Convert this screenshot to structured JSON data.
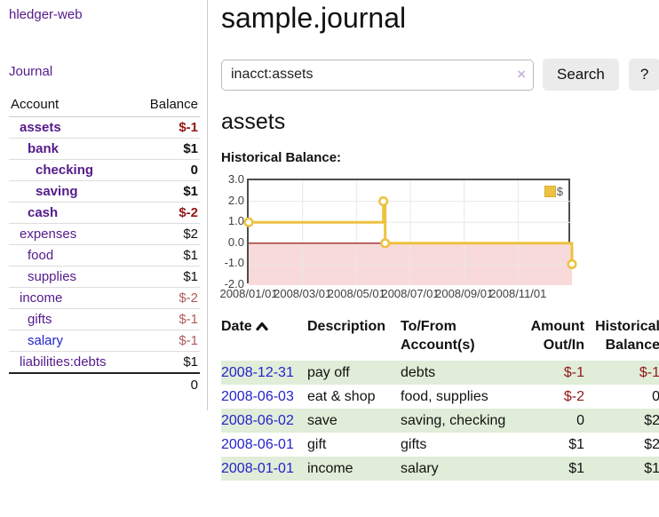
{
  "app": {
    "title": "hledger-web"
  },
  "sidebar": {
    "nav_journal": "Journal",
    "accounts_table": {
      "header_account": "Account",
      "header_balance": "Balance",
      "rows": [
        {
          "name": "assets",
          "indent": 1,
          "bold": true,
          "link_style": "visited",
          "balance": "$-1",
          "balance_style": "neg"
        },
        {
          "name": "bank",
          "indent": 2,
          "bold": true,
          "link_style": "visited",
          "balance": "$1",
          "balance_style": "pos"
        },
        {
          "name": "checking",
          "indent": 3,
          "bold": true,
          "link_style": "visited",
          "balance": "0",
          "balance_style": "pos"
        },
        {
          "name": "saving",
          "indent": 3,
          "bold": true,
          "link_style": "visited",
          "balance": "$1",
          "balance_style": "pos"
        },
        {
          "name": "cash",
          "indent": 2,
          "bold": true,
          "link_style": "visited",
          "balance": "$-2",
          "balance_style": "neg"
        },
        {
          "name": "expenses",
          "indent": 1,
          "bold": false,
          "link_style": "visited",
          "balance": "$2",
          "balance_style": "pos"
        },
        {
          "name": "food",
          "indent": 2,
          "bold": false,
          "link_style": "visited",
          "balance": "$1",
          "balance_style": "pos"
        },
        {
          "name": "supplies",
          "indent": 2,
          "bold": false,
          "link_style": "visited",
          "balance": "$1",
          "balance_style": "pos"
        },
        {
          "name": "income",
          "indent": 1,
          "bold": false,
          "link_style": "visited",
          "balance": "$-2",
          "balance_style": "neg-soft"
        },
        {
          "name": "gifts",
          "indent": 2,
          "bold": false,
          "link_style": "visited",
          "balance": "$-1",
          "balance_style": "neg-soft"
        },
        {
          "name": "salary",
          "indent": 2,
          "bold": false,
          "link_style": "unvisited",
          "balance": "$-1",
          "balance_style": "neg-soft"
        },
        {
          "name": "liabilities:debts",
          "indent": 1,
          "bold": false,
          "link_style": "visited",
          "balance": "$1",
          "balance_style": "pos"
        }
      ],
      "total": "0"
    }
  },
  "header": {
    "title": "sample.journal"
  },
  "search": {
    "value": "inacct:assets",
    "clear_icon": "×",
    "button_label": "Search",
    "help_label": "?"
  },
  "account_page": {
    "title": "assets",
    "chart_label": "Historical Balance:"
  },
  "chart_data": {
    "type": "line",
    "title": "Historical Balance of assets",
    "step": true,
    "legend": "$",
    "legend_position": "top-right",
    "series": [
      {
        "name": "$",
        "color": "#edc240",
        "points": [
          {
            "date": "2008-01-01",
            "value": 1
          },
          {
            "date": "2008-06-01",
            "value": 2
          },
          {
            "date": "2008-06-03",
            "value": 0
          },
          {
            "date": "2008-12-31",
            "value": -1
          }
        ]
      }
    ],
    "ylim": [
      -2,
      3
    ],
    "yticks": [
      "3.0",
      "2.0",
      "1.0",
      "0.0",
      "-1.0",
      "-2.0"
    ],
    "xticks": [
      "2008/01/01",
      "2008/03/01",
      "2008/05/01",
      "2008/07/01",
      "2008/09/01",
      "2008/11/01"
    ],
    "grid": true,
    "grid_color": "#e8e8e8",
    "negative_region_fill": "#f9dada",
    "zero_line_color": "#8b0000",
    "border_color": "#4d4d4d"
  },
  "register": {
    "headers": {
      "date": "Date",
      "description": "Description",
      "accounts": "To/From Account(s)",
      "amount": "Amount Out/In",
      "balance": "Historical Balance"
    },
    "rows": [
      {
        "date": "2008-12-31",
        "description": "pay off",
        "accounts": "debts",
        "amount": "$-1",
        "amount_neg": true,
        "balance": "$-1",
        "balance_neg": true
      },
      {
        "date": "2008-06-03",
        "description": "eat & shop",
        "accounts": "food, supplies",
        "amount": "$-2",
        "amount_neg": true,
        "balance": "0",
        "balance_neg": false
      },
      {
        "date": "2008-06-02",
        "description": "save",
        "accounts": "saving, checking",
        "amount": "0",
        "amount_neg": false,
        "balance": "$2",
        "balance_neg": false
      },
      {
        "date": "2008-06-01",
        "description": "gift",
        "accounts": "gifts",
        "amount": "$1",
        "amount_neg": false,
        "balance": "$2",
        "balance_neg": false
      },
      {
        "date": "2008-01-01",
        "description": "income",
        "accounts": "salary",
        "amount": "$1",
        "amount_neg": false,
        "balance": "$1",
        "balance_neg": false
      }
    ]
  },
  "colors": {
    "link_visited_purple": "#551a8b",
    "link_blue": "#2323cc",
    "negative_strong": "#941717",
    "negative_soft": "#b05c5c",
    "row_stripe_green": "#e0edd8",
    "chart_gold": "#edc240",
    "chart_negative_fill": "#f9dada",
    "chart_zero_line": "#8b0000",
    "button_gray": "#ebebeb"
  }
}
